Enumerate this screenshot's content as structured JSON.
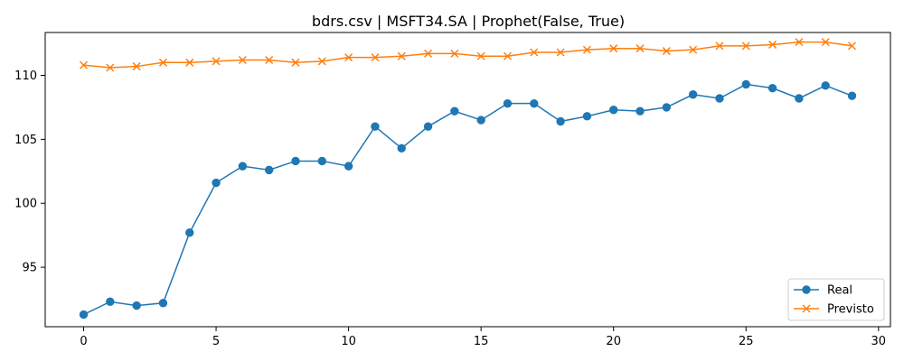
{
  "chart_data": {
    "type": "line",
    "title": "bdrs.csv | MSFT34.SA | Prophet(False, True)",
    "xlabel": "",
    "ylabel": "",
    "x": [
      0,
      1,
      2,
      3,
      4,
      5,
      6,
      7,
      8,
      9,
      10,
      11,
      12,
      13,
      14,
      15,
      16,
      17,
      18,
      19,
      20,
      21,
      22,
      23,
      24,
      25,
      26,
      27,
      28,
      29
    ],
    "xlim": [
      -1.45,
      30.45
    ],
    "ylim": [
      90.35,
      113.35
    ],
    "xticks": [
      0,
      5,
      10,
      15,
      20,
      25,
      30
    ],
    "yticks": [
      95,
      100,
      105,
      110
    ],
    "grid": false,
    "legend_position": "lower-right",
    "series": [
      {
        "name": "Real",
        "color": "#1f77b4",
        "marker": "circle",
        "values": [
          91.3,
          92.3,
          92.0,
          92.2,
          97.7,
          101.6,
          102.9,
          102.6,
          103.3,
          103.3,
          102.9,
          106.0,
          104.3,
          106.0,
          107.2,
          106.5,
          107.8,
          107.8,
          106.4,
          106.8,
          107.3,
          107.2,
          107.5,
          108.5,
          108.2,
          109.3,
          109.0,
          108.2,
          109.2,
          108.4
        ]
      },
      {
        "name": "Previsto",
        "color": "#ff7f0e",
        "marker": "x",
        "values": [
          110.8,
          110.6,
          110.7,
          111.0,
          111.0,
          111.1,
          111.2,
          111.2,
          111.0,
          111.1,
          111.4,
          111.4,
          111.5,
          111.7,
          111.7,
          111.5,
          111.5,
          111.8,
          111.8,
          112.0,
          112.1,
          112.1,
          111.9,
          112.0,
          112.3,
          112.3,
          112.4,
          112.6,
          112.6,
          112.3
        ]
      }
    ]
  }
}
